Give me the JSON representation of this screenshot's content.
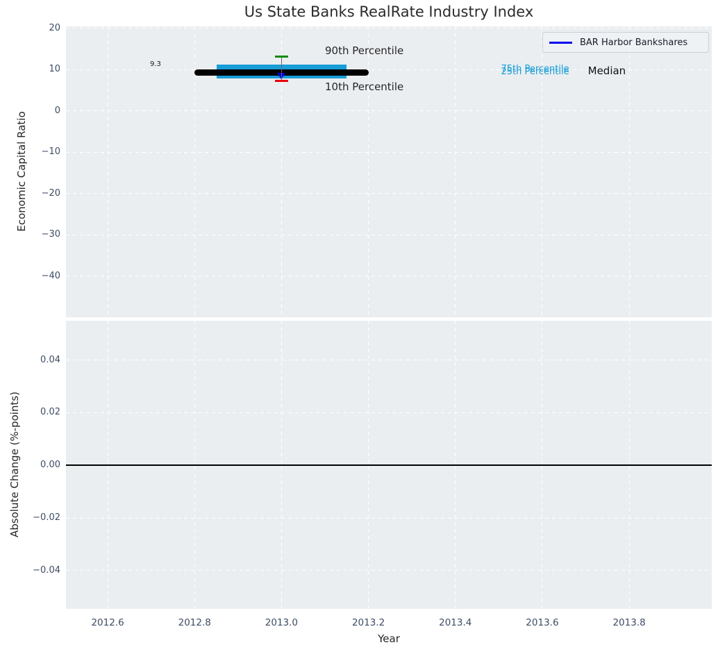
{
  "title": "Us State Banks RealRate Industry Index",
  "legend": {
    "label": "BAR Harbor Bankshares"
  },
  "colors": {
    "plot_bg": "#ebeef1",
    "grid": "#ffffff",
    "tick_label": "#3d4c63",
    "axis_text": "#262626",
    "iqr_box": "#189cd8",
    "median_line": "#000000",
    "p90_cap": "#0a8a0a",
    "p10_cap": "#e80000",
    "company_marker": "#0000dd",
    "whisker": "#666666",
    "zero_line": "#000000",
    "legend_line": "#0000ee"
  },
  "chart_data": {
    "type": "box",
    "title": "Us State Banks RealRate Industry Index",
    "xlabel": "Year",
    "xlim": [
      2012.504,
      2013.99
    ],
    "x_ticks": [
      {
        "v": 2012.6,
        "label": "2012.6"
      },
      {
        "v": 2012.8,
        "label": "2012.8"
      },
      {
        "v": 2013.0,
        "label": "2013.0"
      },
      {
        "v": 2013.2,
        "label": "2013.2"
      },
      {
        "v": 2013.4,
        "label": "2013.4"
      },
      {
        "v": 2013.6,
        "label": "2013.6"
      },
      {
        "v": 2013.8,
        "label": "2013.8"
      }
    ],
    "grid": "white-dashed",
    "legend_position": "upper-right",
    "subplots": [
      {
        "name": "economic-capital-ratio",
        "ylabel": "Economic Capital Ratio",
        "ylim": [
          -50,
          20.5
        ],
        "y_ticks": [
          {
            "v": 20,
            "label": "20"
          },
          {
            "v": 10,
            "label": "10"
          },
          {
            "v": 0,
            "label": "0"
          },
          {
            "v": -10,
            "label": "−10"
          },
          {
            "v": -20,
            "label": "−20"
          },
          {
            "v": -30,
            "label": "−30"
          },
          {
            "v": -40,
            "label": "−40"
          }
        ],
        "box": {
          "x_center": 2013.0,
          "median": 9.3,
          "p25": 7.9,
          "p75": 11.3,
          "p10": 7.3,
          "p90": 13.2,
          "median_x_span": [
            2012.8,
            2013.2
          ],
          "box_x_span": [
            2012.85,
            2013.15
          ],
          "cap_x_span": [
            2012.985,
            2013.015
          ],
          "company": {
            "name": "BAR Harbor Bankshares",
            "x": 2013.0,
            "value": 8.4,
            "marker": "triangle-down"
          }
        },
        "annotations": [
          {
            "text": "9.3",
            "x": 2012.71,
            "y": 11.2,
            "size": 10,
            "color": "#1a1a1a",
            "align": "center"
          },
          {
            "text": "90th Percentile",
            "x": 2013.1,
            "y": 14.6,
            "size": 15,
            "color": "#262626",
            "align": "left"
          },
          {
            "text": "10th Percentile",
            "x": 2013.1,
            "y": 5.8,
            "size": 15,
            "color": "#262626",
            "align": "left"
          },
          {
            "text": "75th Percentile",
            "x": 2013.505,
            "y": 10.15,
            "size": 13,
            "color": "#189ed6",
            "align": "left"
          },
          {
            "text": "25th Percentile",
            "x": 2013.505,
            "y": 9.45,
            "size": 13,
            "color": "#189ed6",
            "align": "left"
          },
          {
            "text": "Median",
            "x": 2013.705,
            "y": 9.7,
            "size": 15,
            "color": "#111111",
            "align": "left"
          }
        ]
      },
      {
        "name": "absolute-change",
        "ylabel": "Absolute Change (%-points)",
        "ylim": [
          -0.0545,
          0.0549
        ],
        "y_ticks": [
          {
            "v": 0.04,
            "label": "0.04"
          },
          {
            "v": 0.02,
            "label": "0.02"
          },
          {
            "v": 0.0,
            "label": "0.00"
          },
          {
            "v": -0.02,
            "label": "−0.02"
          },
          {
            "v": -0.04,
            "label": "−0.04"
          }
        ],
        "zero_line": 0.0
      }
    ]
  }
}
